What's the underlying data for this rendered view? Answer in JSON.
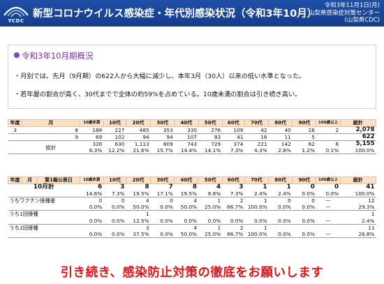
{
  "header": {
    "logo_text": "YCDC",
    "title": "新型コロナウイルス感染症・年代別感染状況（令和3年10月）",
    "date": "令和3年11月1日(月)",
    "org": "山梨県感染症対策センター",
    "org_abbr": "(山梨県CDC)"
  },
  "overview": {
    "heading": "令和3年10月期概況",
    "line1": "・月別では、先月（9月期）の622人から大幅に減少し、本年3月（30人）以来の低い水準となった。",
    "line2": "・若年層の割合が高く、30代までで全体の約59%を占めている。10歳未満の割合は引き続き高い。"
  },
  "table1": {
    "headers": [
      "年度",
      "月",
      "10歳未満",
      "10代",
      "20代",
      "30代",
      "40代",
      "50代",
      "60代",
      "70代",
      "80代",
      "90代",
      "100歳以上",
      "総計"
    ],
    "rows": [
      {
        "year": "3",
        "month": "8",
        "values": [
          "188",
          "227",
          "485",
          "353",
          "330",
          "276",
          "109",
          "42",
          "40",
          "26",
          "2"
        ],
        "total": "2,078"
      },
      {
        "year": "",
        "month": "9",
        "values": [
          "69",
          "102",
          "94",
          "94",
          "107",
          "83",
          "41",
          "16",
          "11",
          "5",
          ""
        ],
        "total": "622"
      }
    ],
    "total_label": "総計",
    "total_values": [
      "326",
      "630",
      "1,113",
      "809",
      "743",
      "729",
      "374",
      "221",
      "142",
      "62",
      "6"
    ],
    "total_total": "5,155",
    "pct_values": [
      "6.3%",
      "12.2%",
      "21.6%",
      "15.7%",
      "14.4%",
      "14.1%",
      "7.3%",
      "4.3%",
      "2.8%",
      "1.2%",
      "0.1%"
    ],
    "pct_total": "100.0%"
  },
  "table2": {
    "headers": [
      "年度",
      "月",
      "第1報公表日",
      "10歳未満",
      "10代",
      "20代",
      "30代",
      "40代",
      "50代",
      "60代",
      "70代",
      "80代",
      "90代",
      "100歳以上",
      "総計"
    ],
    "month_total": {
      "label": "10月計",
      "values": [
        "6",
        "3",
        "8",
        "7",
        "8",
        "4",
        "3",
        "1",
        "1",
        "0",
        "0"
      ],
      "total": "41",
      "pct": [
        "14.6%",
        "7.3%",
        "19.5%",
        "17.1%",
        "19.5%",
        "9.8%",
        "7.3%",
        "2.4%",
        "2.4%",
        "0.0%",
        "0.0%"
      ],
      "pct_total": "100.0%"
    },
    "sub_rows": [
      {
        "label": "うちワクチン接種者",
        "values": [
          "0",
          "0",
          "4",
          "0",
          "4",
          "1",
          "2",
          "1",
          "0",
          "0",
          "—"
        ],
        "total": "12",
        "pct": [
          "0.0%",
          "0.0%",
          "50.0%",
          "0.0%",
          "50.0%",
          "25.0%",
          "66.7%",
          "100.0%",
          "0.0%",
          "0.0%",
          "—"
        ],
        "pct_total": "29.3%"
      },
      {
        "label": "うち1回接種",
        "values": [
          "",
          "",
          "1",
          "",
          "",
          "",
          "",
          "",
          "",
          "",
          ""
        ],
        "total": "1",
        "pct": [
          "0.0%",
          "0.0%",
          "12.5%",
          "0.0%",
          "0.0%",
          "0.0%",
          "0.0%",
          "0.0%",
          "0.0%",
          "0.0%",
          "—"
        ],
        "pct_total": "2.4%"
      },
      {
        "label": "うち2回接種",
        "values": [
          "",
          "",
          "3",
          "",
          "4",
          "1",
          "2",
          "1",
          "",
          "",
          ""
        ],
        "total": "11",
        "pct": [
          "0.0%",
          "0.0%",
          "37.5%",
          "0.0%",
          "50.0%",
          "25.0%",
          "66.7%",
          "100.0%",
          "0.0%",
          "0.0%",
          "—"
        ],
        "pct_total": "26.8%"
      }
    ]
  },
  "banner": "引き続き、感染防止対策の徹底をお願いします"
}
